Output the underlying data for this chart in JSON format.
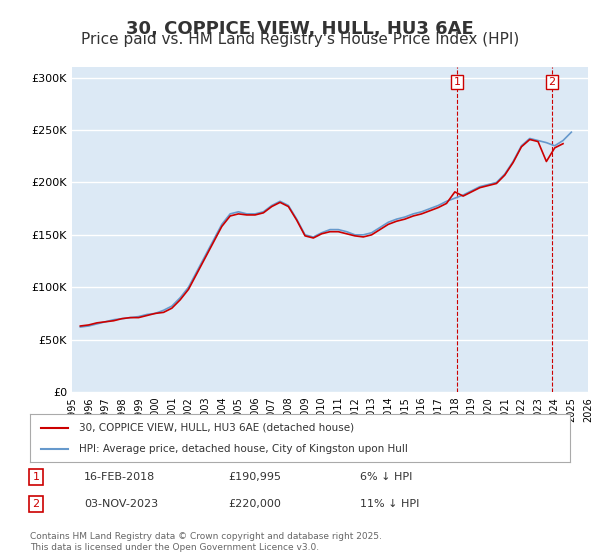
{
  "title": "30, COPPICE VIEW, HULL, HU3 6AE",
  "subtitle": "Price paid vs. HM Land Registry's House Price Index (HPI)",
  "title_fontsize": 13,
  "subtitle_fontsize": 11,
  "background_color": "#ffffff",
  "plot_bg_color": "#dce9f5",
  "grid_color": "#ffffff",
  "ylim": [
    0,
    310000
  ],
  "yticks": [
    0,
    50000,
    100000,
    150000,
    200000,
    250000,
    300000
  ],
  "ytick_labels": [
    "£0",
    "£50K",
    "£100K",
    "£150K",
    "£200K",
    "£250K",
    "£300K"
  ],
  "year_start": 1995,
  "year_end": 2026,
  "marker1_year": 2018.12,
  "marker2_year": 2023.84,
  "marker1_label": "1",
  "marker2_label": "2",
  "marker1_color": "#cc0000",
  "marker2_color": "#cc0000",
  "red_line_color": "#cc0000",
  "blue_line_color": "#6699cc",
  "legend_entries": [
    "30, COPPICE VIEW, HULL, HU3 6AE (detached house)",
    "HPI: Average price, detached house, City of Kingston upon Hull"
  ],
  "annotation1": [
    "1",
    "16-FEB-2018",
    "£190,995",
    "6% ↓ HPI"
  ],
  "annotation2": [
    "2",
    "03-NOV-2023",
    "£220,000",
    "11% ↓ HPI"
  ],
  "footnote": "Contains HM Land Registry data © Crown copyright and database right 2025.\nThis data is licensed under the Open Government Licence v3.0.",
  "hpi_data": {
    "years": [
      1995.5,
      1996.0,
      1996.5,
      1997.0,
      1997.5,
      1998.0,
      1998.5,
      1999.0,
      1999.5,
      2000.0,
      2000.5,
      2001.0,
      2001.5,
      2002.0,
      2002.5,
      2003.0,
      2003.5,
      2004.0,
      2004.5,
      2005.0,
      2005.5,
      2006.0,
      2006.5,
      2007.0,
      2007.5,
      2008.0,
      2008.5,
      2009.0,
      2009.5,
      2010.0,
      2010.5,
      2011.0,
      2011.5,
      2012.0,
      2012.5,
      2013.0,
      2013.5,
      2014.0,
      2014.5,
      2015.0,
      2015.5,
      2016.0,
      2016.5,
      2017.0,
      2017.5,
      2018.0,
      2018.5,
      2019.0,
      2019.5,
      2020.0,
      2020.5,
      2021.0,
      2021.5,
      2022.0,
      2022.5,
      2023.0,
      2023.5,
      2024.0,
      2024.5,
      2025.0
    ],
    "values": [
      62000,
      63000,
      65000,
      67000,
      69000,
      70000,
      71000,
      72000,
      74000,
      75000,
      78000,
      82000,
      90000,
      100000,
      115000,
      130000,
      145000,
      160000,
      170000,
      172000,
      170000,
      170000,
      172000,
      178000,
      182000,
      178000,
      165000,
      150000,
      148000,
      152000,
      155000,
      155000,
      153000,
      150000,
      150000,
      152000,
      157000,
      162000,
      165000,
      167000,
      170000,
      172000,
      175000,
      178000,
      182000,
      185000,
      188000,
      192000,
      196000,
      198000,
      200000,
      208000,
      220000,
      235000,
      242000,
      240000,
      238000,
      235000,
      240000,
      248000
    ]
  },
  "price_data": {
    "years": [
      1995.5,
      1996.0,
      1996.5,
      1997.0,
      1997.5,
      1998.0,
      1998.5,
      1999.0,
      1999.5,
      2000.0,
      2000.5,
      2001.0,
      2001.5,
      2002.0,
      2002.5,
      2003.0,
      2003.5,
      2004.0,
      2004.5,
      2005.0,
      2005.5,
      2006.0,
      2006.5,
      2007.0,
      2007.5,
      2008.0,
      2008.5,
      2009.0,
      2009.5,
      2010.0,
      2010.5,
      2011.0,
      2011.5,
      2012.0,
      2012.5,
      2013.0,
      2013.5,
      2014.0,
      2014.5,
      2015.0,
      2015.5,
      2016.0,
      2016.5,
      2017.0,
      2017.5,
      2018.0,
      2018.5,
      2019.0,
      2019.5,
      2020.0,
      2020.5,
      2021.0,
      2021.5,
      2022.0,
      2022.5,
      2023.0,
      2023.5,
      2024.0,
      2024.5
    ],
    "values": [
      63000,
      64000,
      66000,
      67000,
      68000,
      70000,
      71000,
      71000,
      73000,
      75000,
      76000,
      80000,
      88000,
      98000,
      113000,
      128000,
      143000,
      158000,
      168000,
      170000,
      169000,
      169000,
      171000,
      177000,
      181000,
      177000,
      164000,
      149000,
      147000,
      151000,
      153000,
      153000,
      151000,
      149000,
      148000,
      150000,
      155000,
      160000,
      163000,
      165000,
      168000,
      170000,
      173000,
      176000,
      180000,
      190995,
      187000,
      191000,
      195000,
      197000,
      199000,
      207000,
      219000,
      234000,
      241000,
      239000,
      220000,
      233000,
      237000
    ]
  }
}
